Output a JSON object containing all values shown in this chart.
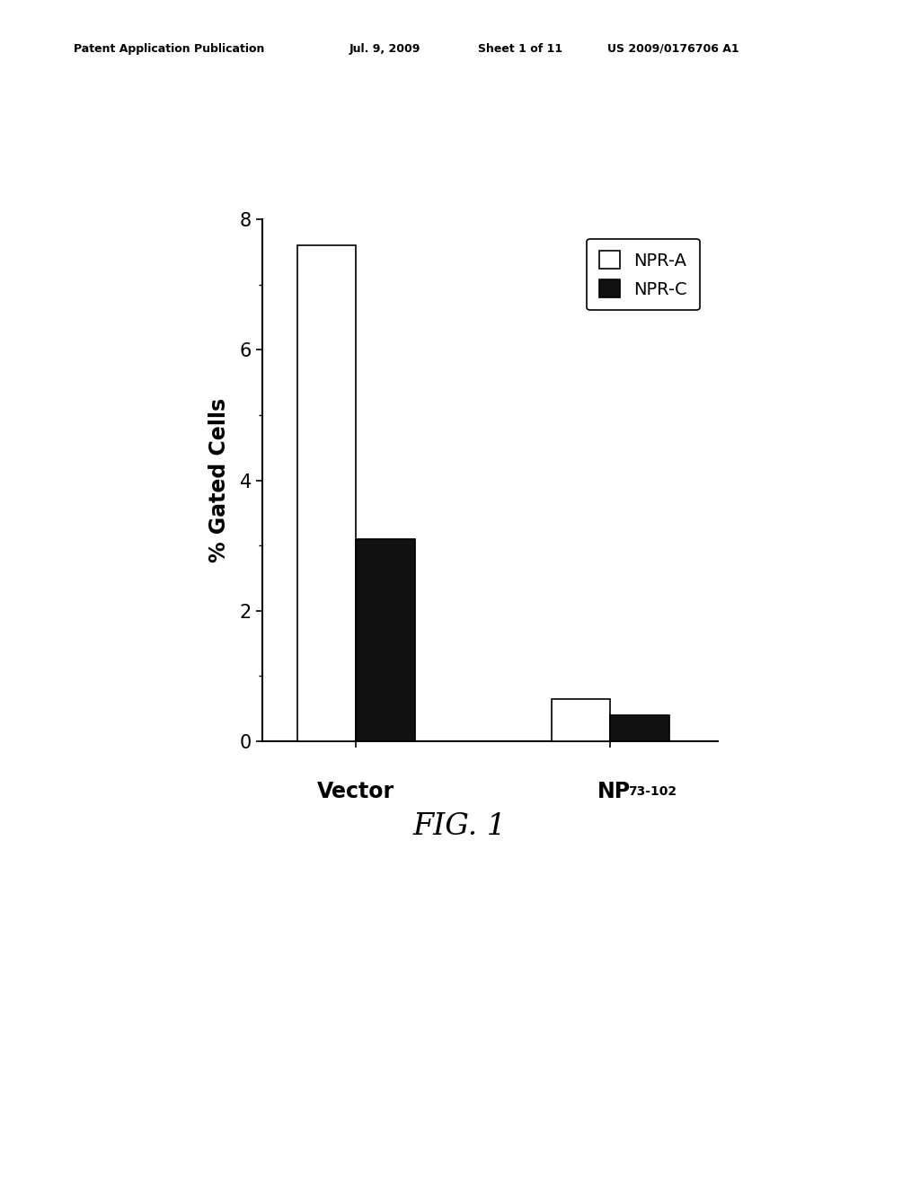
{
  "npr_a_values": [
    7.6,
    0.65
  ],
  "npr_c_values": [
    3.1,
    0.4
  ],
  "ylabel": "% Gated Cells",
  "ylim": [
    0,
    8
  ],
  "yticks": [
    0,
    2,
    4,
    6,
    8
  ],
  "legend_labels": [
    "NPR-A",
    "NPR-C"
  ],
  "bar_width": 0.22,
  "bar_color_npra": "#ffffff",
  "bar_color_nprc": "#111111",
  "bar_edge_color": "#000000",
  "fig_caption": "FIG. 1",
  "header_left": "Patent Application Publication",
  "header_mid1": "Jul. 9, 2009",
  "header_mid2": "Sheet 1 of 11",
  "header_right": "US 2009/0176706 A1",
  "background_color": "#ffffff",
  "group_centers": [
    0.5,
    1.45
  ]
}
